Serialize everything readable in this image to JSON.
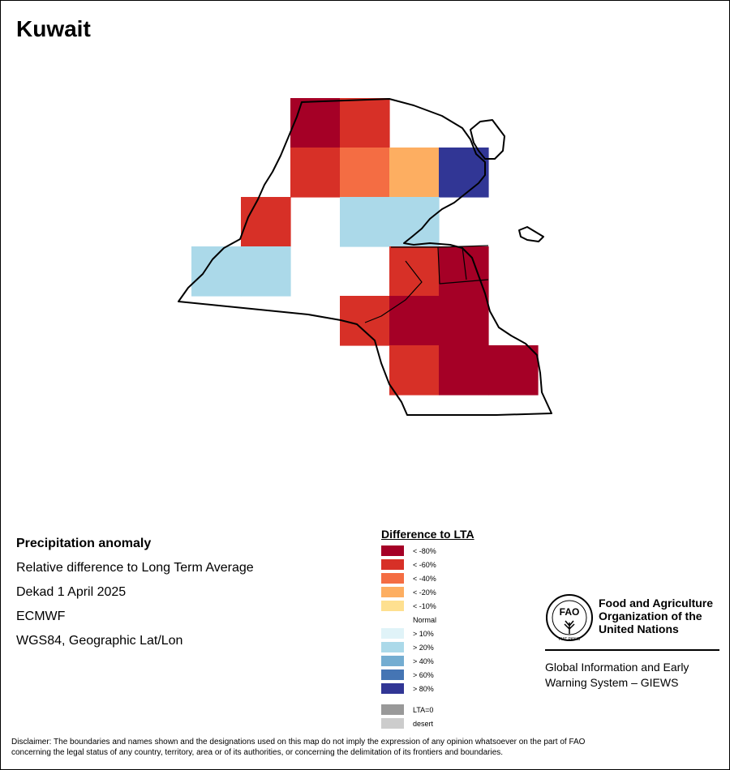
{
  "map": {
    "title": "Kuwait",
    "cells": [
      {
        "row": 0,
        "col": 2,
        "class": "< -80%"
      },
      {
        "row": 0,
        "col": 3,
        "class": "< -60%"
      },
      {
        "row": 1,
        "col": 2,
        "class": "< -60%"
      },
      {
        "row": 1,
        "col": 3,
        "class": "< -40%"
      },
      {
        "row": 1,
        "col": 4,
        "class": "< -20%"
      },
      {
        "row": 1,
        "col": 5,
        "class": "> 80%"
      },
      {
        "row": 2,
        "col": 1,
        "class": "< -60%"
      },
      {
        "row": 2,
        "col": 3,
        "class": "> 20%"
      },
      {
        "row": 2,
        "col": 4,
        "class": "> 20%"
      },
      {
        "row": 3,
        "col": 0,
        "class": "> 20%"
      },
      {
        "row": 3,
        "col": 1,
        "class": "> 20%"
      },
      {
        "row": 3,
        "col": 4,
        "class": "< -60%"
      },
      {
        "row": 3,
        "col": 5,
        "class": "< -80%"
      },
      {
        "row": 4,
        "col": 3,
        "class": "< -60%"
      },
      {
        "row": 4,
        "col": 4,
        "class": "< -80%"
      },
      {
        "row": 4,
        "col": 5,
        "class": "< -80%"
      },
      {
        "row": 5,
        "col": 4,
        "class": "< -60%"
      },
      {
        "row": 5,
        "col": 5,
        "class": "< -80%"
      },
      {
        "row": 5,
        "col": 6,
        "class": "< -80%"
      }
    ]
  },
  "info": {
    "line1": "Precipitation anomaly",
    "line2": "Relative difference to Long Term Average",
    "line3": "Dekad 1 April 2025",
    "line4": "ECMWF",
    "line5": "WGS84, Geographic Lat/Lon"
  },
  "legend": {
    "title": "Difference to LTA",
    "items": [
      {
        "label": "< -80%",
        "color": "#a50026"
      },
      {
        "label": "< -60%",
        "color": "#d73027"
      },
      {
        "label": "< -40%",
        "color": "#f46d43"
      },
      {
        "label": "< -20%",
        "color": "#fdae61"
      },
      {
        "label": "< -10%",
        "color": "#fee090"
      },
      {
        "label": "Normal",
        "color": "#ffffff"
      },
      {
        "label": "> 10%",
        "color": "#e0f3f8"
      },
      {
        "label": "> 20%",
        "color": "#abd9e9"
      },
      {
        "label": "> 40%",
        "color": "#74add1"
      },
      {
        "label": "> 60%",
        "color": "#4575b4"
      },
      {
        "label": "> 80%",
        "color": "#313695"
      }
    ],
    "lta0": {
      "label": "LTA=0",
      "color": "#999999"
    },
    "desert": {
      "label": "desert",
      "color": "#cccccc"
    }
  },
  "fao": {
    "logo_text": "FAO",
    "logo_motto": "FIAT PANIS",
    "name_line1": "Food and Agriculture",
    "name_line2": "Organization of the",
    "name_line3": "United Nations",
    "system_line1": "Global Information and Early",
    "system_line2": "Warning System – GIEWS"
  },
  "disclaimer_line1": "Disclaimer: The boundaries and names shown and the designations used on this map do not imply the expression of any opinion whatsoever on the part of FAO",
  "disclaimer_line2": "concerning the legal status of any country, territory, area or of its authorities, or concerning the delimitation of its frontiers and boundaries."
}
